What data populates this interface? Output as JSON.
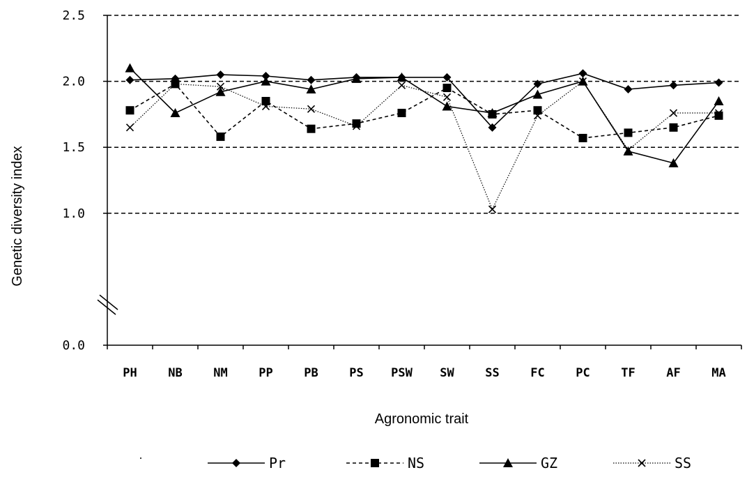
{
  "chart_data": {
    "type": "line",
    "xlabel": "Agronomic trait",
    "ylabel": "Genetic diversity index",
    "categories": [
      "PH",
      "NB",
      "NM",
      "PP",
      "PB",
      "PS",
      "PSW",
      "SW",
      "SS",
      "FC",
      "PC",
      "TF",
      "AF",
      "MA"
    ],
    "ylim": [
      0.0,
      2.5
    ],
    "axis_break": true,
    "yticks": [
      {
        "value": 0.0,
        "label": "0.0"
      },
      {
        "value": 1.0,
        "label": "1.0"
      },
      {
        "value": 1.5,
        "label": "1.5"
      },
      {
        "value": 2.0,
        "label": "2.0"
      },
      {
        "value": 2.5,
        "label": "2.5"
      }
    ],
    "grid": "horizontal dashed",
    "legend_position": "bottom",
    "series": [
      {
        "name": "Pr",
        "marker": "diamond",
        "line": "solid",
        "values": [
          2.01,
          2.02,
          2.05,
          2.04,
          2.01,
          2.03,
          2.03,
          2.03,
          1.65,
          1.98,
          2.06,
          1.94,
          1.97,
          1.99
        ]
      },
      {
        "name": "NS",
        "marker": "square",
        "line": "dashed",
        "values": [
          1.78,
          1.98,
          1.58,
          1.85,
          1.64,
          1.68,
          1.76,
          1.95,
          1.75,
          1.78,
          1.57,
          1.61,
          1.65,
          1.74
        ]
      },
      {
        "name": "GZ",
        "marker": "triangle",
        "line": "solid",
        "values": [
          2.1,
          1.76,
          1.92,
          2.0,
          1.94,
          2.02,
          2.03,
          1.81,
          1.76,
          1.9,
          2.0,
          1.47,
          1.38,
          1.85
        ]
      },
      {
        "name": "SS",
        "marker": "x",
        "line": "dotted",
        "values": [
          1.65,
          1.98,
          1.96,
          1.81,
          1.79,
          1.66,
          1.97,
          1.88,
          1.03,
          1.74,
          2.0,
          1.48,
          1.76,
          1.76
        ]
      }
    ]
  }
}
